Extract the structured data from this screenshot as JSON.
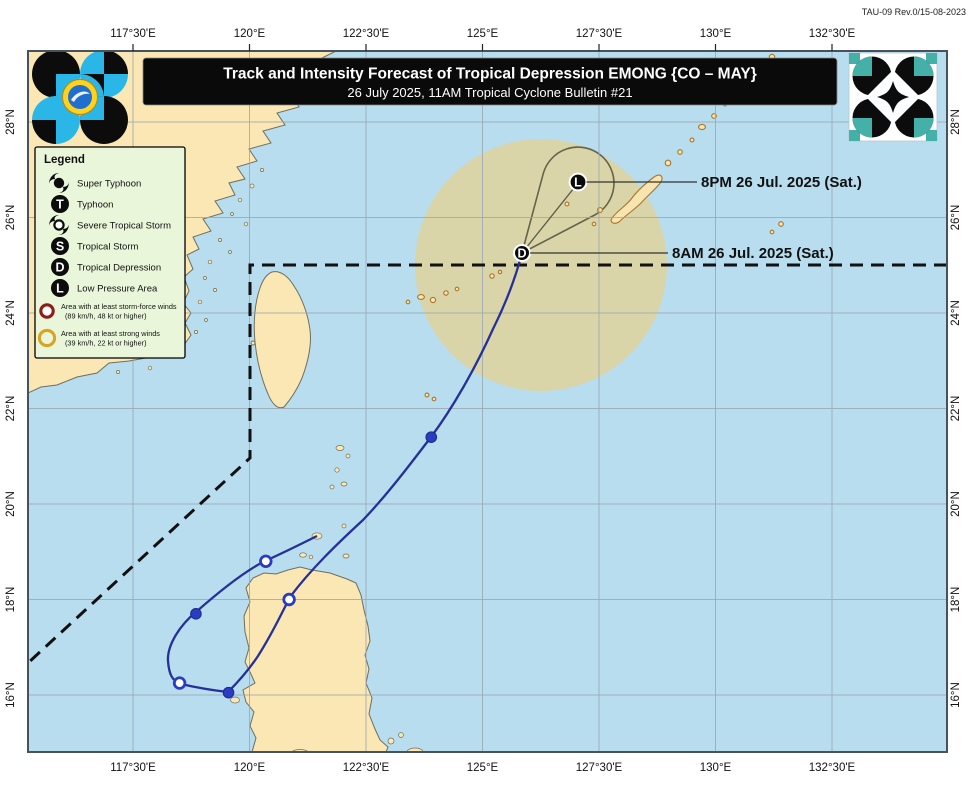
{
  "doc_ref": "TAU-09 Rev.0/15-08-2023",
  "title": {
    "line1": "Track and Intensity Forecast of Tropical Depression EMONG {CO – MAY}",
    "line2": "26 July 2025, 11AM Tropical Cyclone Bulletin #21"
  },
  "axes": {
    "lon_labels": [
      "117°30'E",
      "120°E",
      "122°30'E",
      "125°E",
      "127°30'E",
      "130°E",
      "132°30'E"
    ],
    "lat_labels": [
      "28°N",
      "26°N",
      "24°N",
      "22°N",
      "20°N",
      "18°N",
      "16°N"
    ]
  },
  "legend": {
    "title": "Legend",
    "items": [
      {
        "icon": "super-typhoon-icon",
        "symbol": "",
        "label": "Super Typhoon"
      },
      {
        "icon": "typhoon-icon",
        "symbol": "T",
        "label": "Typhoon"
      },
      {
        "icon": "severe-tropical-storm-icon",
        "symbol": "",
        "label": "Severe Tropical Storm"
      },
      {
        "icon": "tropical-storm-icon",
        "symbol": "S",
        "label": "Tropical Storm"
      },
      {
        "icon": "tropical-depression-icon",
        "symbol": "D",
        "label": "Tropical Depression"
      },
      {
        "icon": "low-pressure-area-icon",
        "symbol": "L",
        "label": "Low Pressure Area"
      }
    ],
    "areas": [
      {
        "icon": "storm-force-wind-ring-icon",
        "color": "#8c1d18",
        "label": "Area with at least storm-force winds",
        "sublabel": "(89 km/h, 48 kt or higher)"
      },
      {
        "icon": "strong-wind-ring-icon",
        "color": "#d9a520",
        "label": "Area with at least strong winds",
        "sublabel": "(39 km/h, 22 kt or higher)"
      }
    ]
  },
  "callouts": [
    {
      "marker": "L",
      "text": "8PM 26 Jul. 2025 (Sat.)"
    },
    {
      "marker": "D",
      "text": "8AM 26 Jul. 2025 (Sat.)"
    }
  ],
  "markers": {
    "current": {
      "symbol": "D",
      "label": "8AM 26 Jul. 2025 (Sat.)",
      "lat": 25.3,
      "lon": 125.85
    },
    "forecast": {
      "symbol": "L",
      "label": "8PM 26 Jul. 2025 (Sat.)",
      "lat": 26.7,
      "lon": 127.05
    }
  },
  "chart_data": {
    "type": "map-track",
    "storm_name": "EMONG {CO – MAY}",
    "storm_category": "Tropical Depression",
    "bulletin": "Tropical Cyclone Bulletin #21, 26 July 2025 11AM",
    "past_track": [
      {
        "lat": 19.3,
        "lon": 121.45,
        "dot": "none"
      },
      {
        "lat": 18.8,
        "lon": 120.35,
        "dot": "open"
      },
      {
        "lat": 17.7,
        "lon": 118.85,
        "dot": "filled"
      },
      {
        "lat": 16.25,
        "lon": 118.5,
        "dot": "open"
      },
      {
        "lat": 16.05,
        "lon": 119.55,
        "dot": "filled"
      },
      {
        "lat": 18.0,
        "lon": 120.85,
        "dot": "open"
      },
      {
        "lat": 21.4,
        "lon": 123.9,
        "dot": "filled"
      },
      {
        "lat": 25.3,
        "lon": 125.85,
        "dot": "current"
      }
    ],
    "forecast_track": [
      {
        "lat": 25.3,
        "lon": 125.85,
        "symbol": "D",
        "time": "8AM 26 Jul. 2025 (Sat.)"
      },
      {
        "lat": 26.7,
        "lon": 127.05,
        "symbol": "L",
        "time": "8PM 26 Jul. 2025 (Sat.)"
      }
    ],
    "strong_wind_area": {
      "center_lat": 25.0,
      "center_lon": 126.25,
      "radius_deg": 2.6
    },
    "par_boundary": "dashed line along 25°N then 120°E then diagonal toward 15°N 115°E",
    "lon_range": [
      115.2,
      135.0
    ],
    "lat_range": [
      14.8,
      29.6
    ]
  },
  "colors": {
    "sea": "#b7ddef",
    "land": "#fbe7b4",
    "wind_area": "#dad4a9",
    "track": "#253199",
    "par_line": "#111111",
    "legend_bg": "#eaf6da",
    "title_bg": "#0a0a0a",
    "ryukyu_outline": "#a8762c",
    "storm_force_ring": "#8c1d18",
    "strong_wind_ring": "#d9a520",
    "pagasa_cyan": "#2ab7e8",
    "dost_teal": "#45b0a8"
  }
}
